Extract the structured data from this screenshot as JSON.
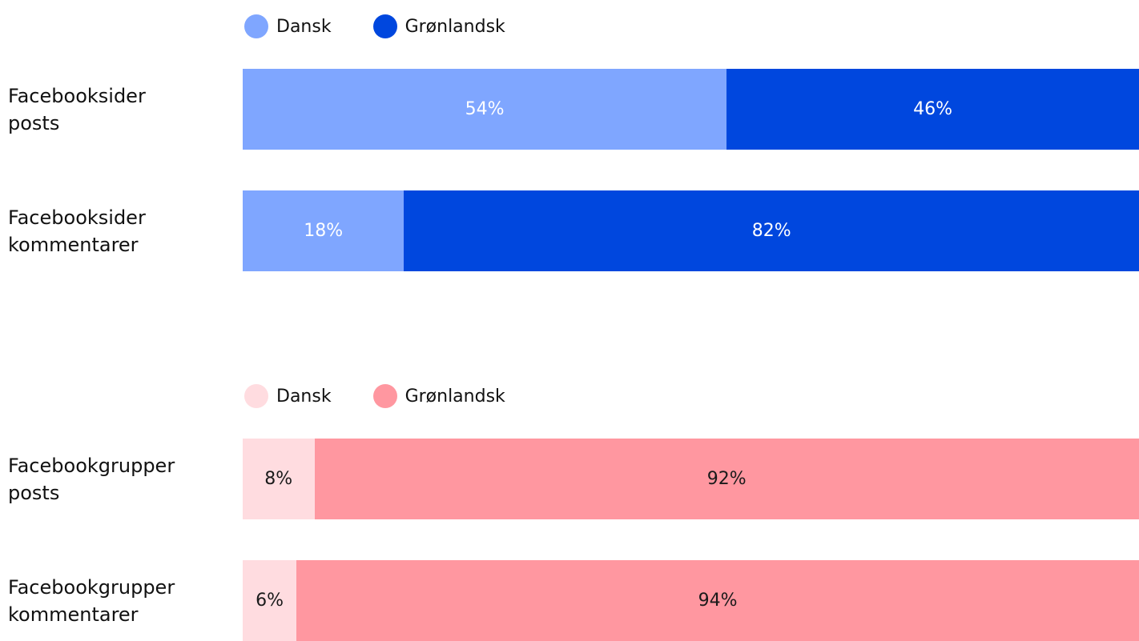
{
  "chart_data": [
    {
      "type": "stacked_barh",
      "categories": [
        "Facebooksider posts",
        "Facebooksider kommentarer"
      ],
      "label_color": "#ffffff",
      "series": [
        {
          "name": "Dansk",
          "color": "#7fa6ff",
          "values": [
            54,
            18
          ],
          "value_labels": [
            "54%",
            "18%"
          ]
        },
        {
          "name": "Grønlandsk",
          "color": "#0047de",
          "values": [
            46,
            82
          ],
          "value_labels": [
            "46%",
            "82%"
          ]
        }
      ]
    },
    {
      "type": "stacked_barh",
      "categories": [
        "Facebookgrupper posts",
        "Facebookgrupper kommentarer"
      ],
      "label_color": "#1a1a1a",
      "series": [
        {
          "name": "Dansk",
          "color": "#ffdce0",
          "values": [
            8,
            6
          ],
          "value_labels": [
            "8%",
            "6%"
          ]
        },
        {
          "name": "Grønlandsk",
          "color": "#ff97a0",
          "values": [
            92,
            94
          ],
          "value_labels": [
            "92%",
            "94%"
          ]
        }
      ]
    }
  ]
}
